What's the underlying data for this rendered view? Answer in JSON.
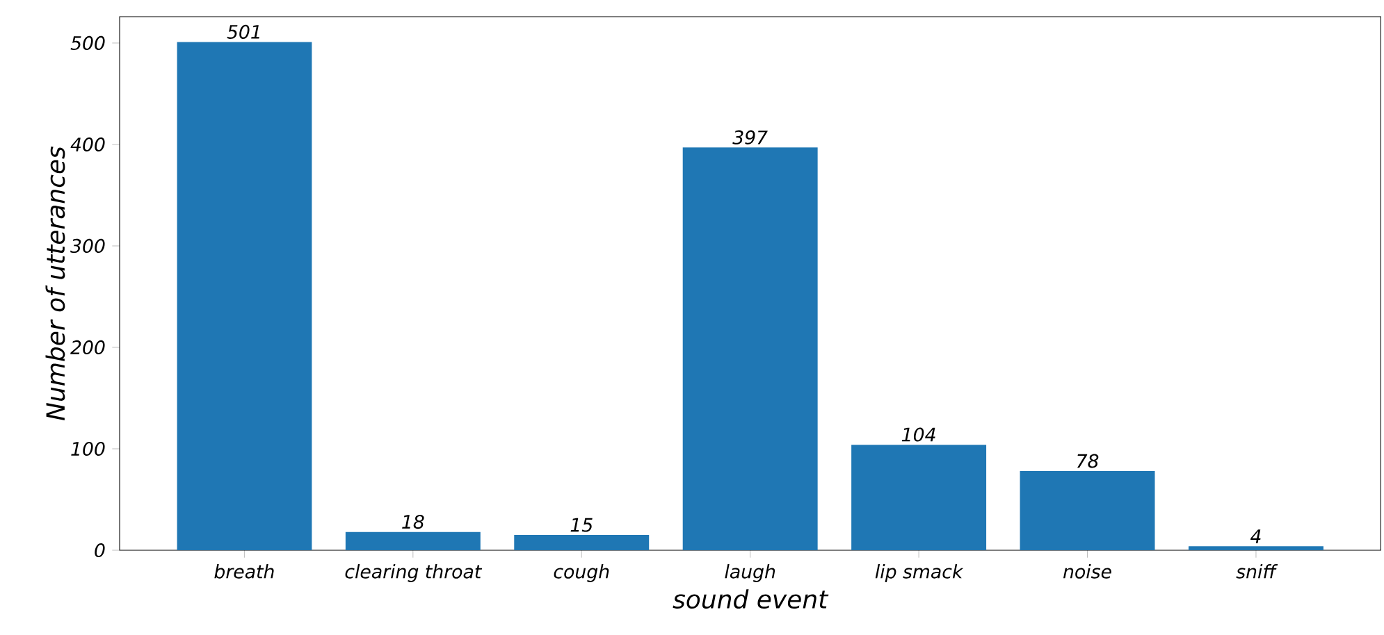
{
  "chart_data": {
    "type": "bar",
    "xlabel": "sound event",
    "ylabel": "Number of utterances",
    "categories": [
      "breath",
      "clearing throat",
      "cough",
      "laugh",
      "lip smack",
      "noise",
      "sniff"
    ],
    "values": [
      501,
      18,
      15,
      397,
      104,
      78,
      4
    ],
    "color": "#1f77b4",
    "ylim": [
      0,
      526
    ],
    "yticks": [
      0,
      100,
      200,
      300,
      400,
      500
    ],
    "data_labels": true
  }
}
